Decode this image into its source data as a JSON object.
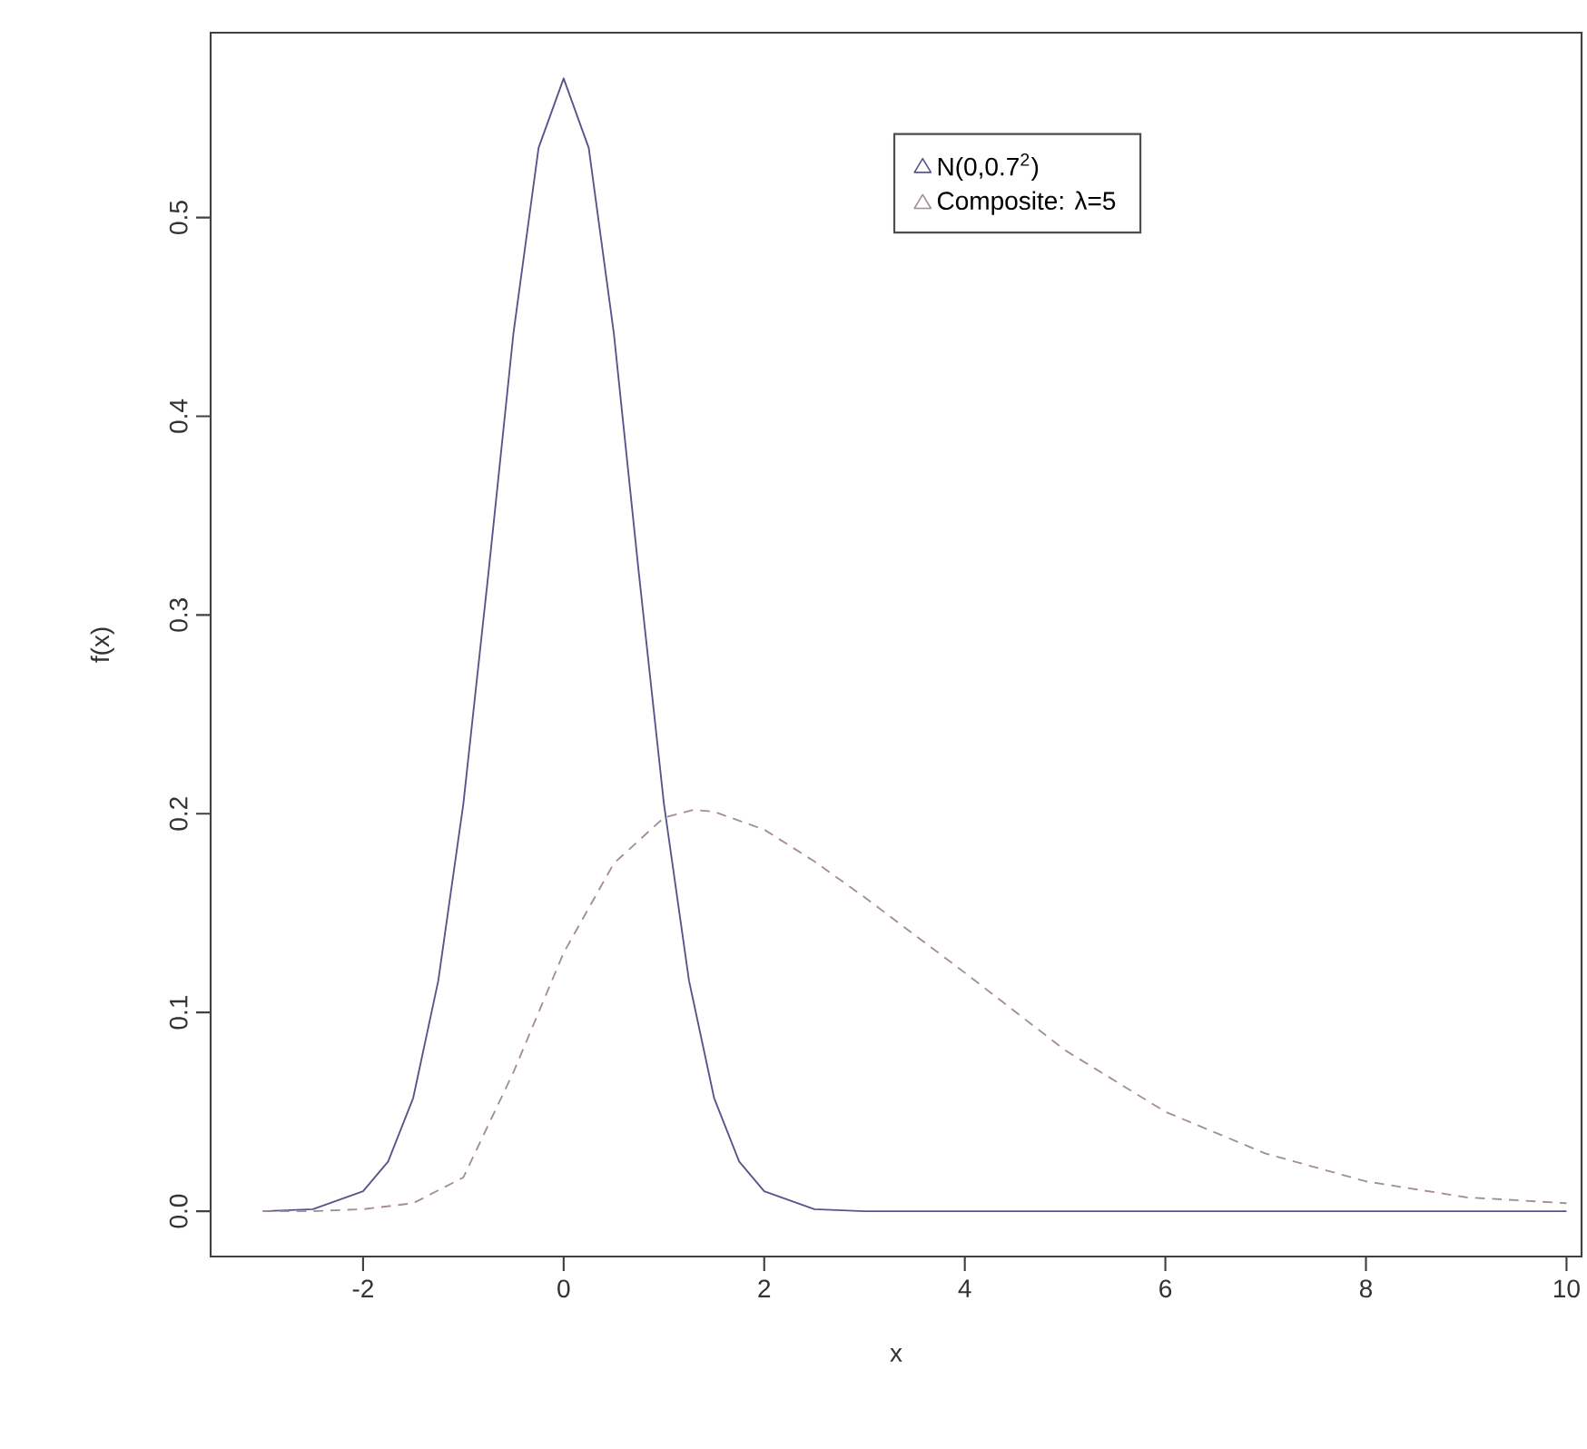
{
  "chart_data": {
    "type": "line",
    "xlabel": "x",
    "ylabel": "f(x)",
    "xlim": [
      -3.52,
      10.15
    ],
    "ylim": [
      -0.0228,
      0.593
    ],
    "xticks": [
      -2,
      0,
      2,
      4,
      6,
      8,
      10
    ],
    "yticks": [
      {
        "value": 0,
        "label": "0.0"
      },
      0.1,
      0.2,
      0.3,
      0.4,
      0.5
    ],
    "legend": "top right",
    "grid": false,
    "series": [
      {
        "name": "N(0,0.7$^{2}$)",
        "color": "#55558a",
        "line_style": "solid",
        "x": [
          -3,
          -2.5,
          -2,
          -1.75,
          -1.5,
          -1.25,
          -1,
          -0.75,
          -0.5,
          -0.25,
          0,
          0.25,
          0.5,
          0.75,
          1,
          1.25,
          1.5,
          1.75,
          2,
          2.5,
          3,
          4,
          5,
          6,
          7,
          8,
          9,
          10
        ],
        "values": [
          0,
          0.001,
          0.01,
          0.025,
          0.057,
          0.116,
          0.205,
          0.321,
          0.442,
          0.535,
          0.57,
          0.535,
          0.442,
          0.321,
          0.205,
          0.116,
          0.057,
          0.025,
          0.01,
          0.001,
          0,
          0,
          0,
          0,
          0,
          0,
          0,
          0
        ]
      },
      {
        "name": "Composite: λ=5",
        "color": "#a48c9c",
        "line_style": "dashed",
        "x": [
          -3,
          -2.5,
          -2,
          -1.5,
          -1,
          -0.5,
          0,
          0.5,
          1,
          1.3,
          1.5,
          2,
          2.5,
          3,
          4,
          5,
          6,
          7,
          8,
          9,
          10
        ],
        "values": [
          0,
          0,
          0.001,
          0.004,
          0.017,
          0.07,
          0.13,
          0.175,
          0.198,
          0.202,
          0.201,
          0.192,
          0.176,
          0.158,
          0.12,
          0.081,
          0.05,
          0.029,
          0.015,
          0.007,
          0.004
        ]
      }
    ]
  }
}
